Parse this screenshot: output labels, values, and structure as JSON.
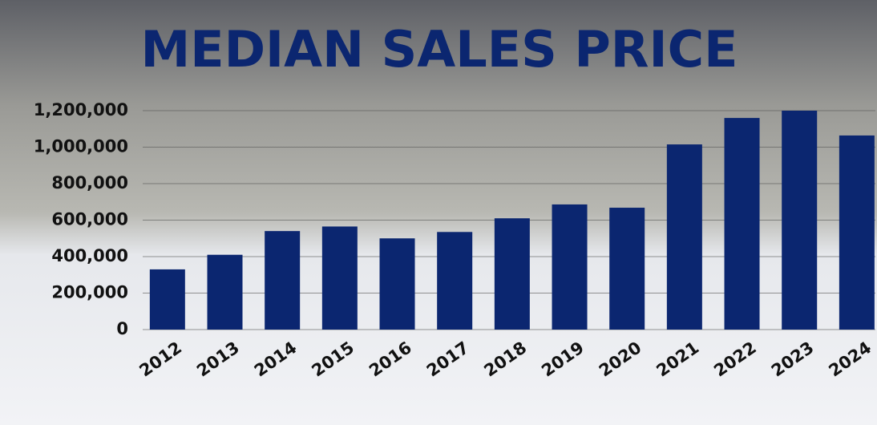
{
  "chart_data": {
    "type": "bar",
    "title": "MEDIAN SALES PRICE",
    "categories": [
      "2012",
      "2013",
      "2014",
      "2015",
      "2016",
      "2017",
      "2018",
      "2019",
      "2020",
      "2021",
      "2022",
      "2023",
      "2024"
    ],
    "values": [
      330000,
      410000,
      540000,
      565000,
      500000,
      535000,
      610000,
      686000,
      668000,
      1015000,
      1160000,
      1200000,
      1064000
    ],
    "color": "#0b2670",
    "ylim": [
      0,
      1200000
    ],
    "yticks": [
      0,
      {
        "value": 200000,
        "label": "200,000"
      },
      {
        "value": 400000,
        "label": "400,000"
      },
      {
        "value": 600000,
        "label": "600,000"
      },
      {
        "value": 800000,
        "label": "800,000"
      },
      {
        "value": 1000000,
        "label": "1,000,000"
      },
      {
        "value": 1200000,
        "label": "1,200,000"
      }
    ],
    "grid": true
  }
}
